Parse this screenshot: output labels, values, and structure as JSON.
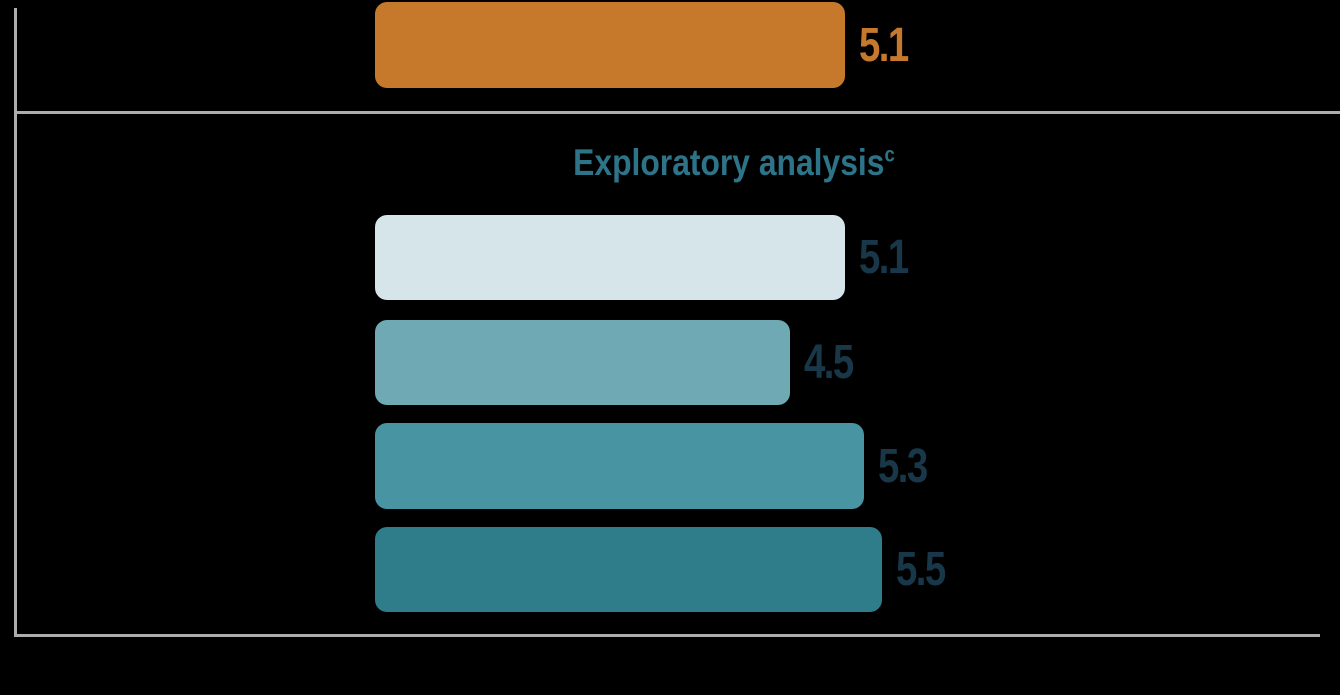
{
  "chart_data": {
    "type": "bar",
    "orientation": "horizontal",
    "background": "#000000",
    "bars": [
      {
        "id": "primary",
        "section": "primary",
        "value": 5.1,
        "label": "5.1",
        "fill": "#C7792B",
        "label_color": "#C7792B"
      },
      {
        "id": "exploratory-1",
        "section": "exploratory",
        "value": 5.1,
        "label": "5.1",
        "fill": "#D5E5E9",
        "label_color": "#18384A"
      },
      {
        "id": "exploratory-2",
        "section": "exploratory",
        "value": 4.5,
        "label": "4.5",
        "fill": "#6FA9B3",
        "label_color": "#18384A"
      },
      {
        "id": "exploratory-3",
        "section": "exploratory",
        "value": 5.3,
        "label": "5.3",
        "fill": "#4994A2",
        "label_color": "#18384A"
      },
      {
        "id": "exploratory-4",
        "section": "exploratory",
        "value": 5.5,
        "label": "5.5",
        "fill": "#2F7C8A",
        "label_color": "#18384A"
      }
    ],
    "section_label": {
      "text": "Exploratory analysis",
      "superscript": "c",
      "color": "#2D7488"
    },
    "axes": {
      "line_color": "#ADADAD",
      "tick_labels_visible": false,
      "value_axis_min": 0
    }
  }
}
